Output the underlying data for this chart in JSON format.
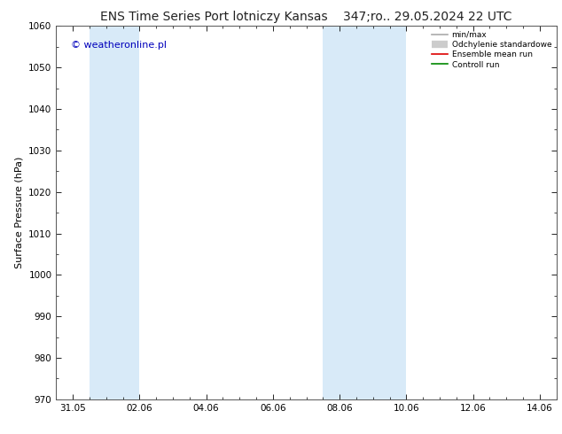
{
  "title_left": "ENS Time Series Port lotniczy Kansas",
  "title_right": "347;ro.. 29.05.2024 22 UTC",
  "ylabel": "Surface Pressure (hPa)",
  "ylim": [
    970,
    1060
  ],
  "yticks": [
    970,
    980,
    990,
    1000,
    1010,
    1020,
    1030,
    1040,
    1050,
    1060
  ],
  "xtick_labels": [
    "31.05",
    "02.06",
    "04.06",
    "06.06",
    "08.06",
    "10.06",
    "12.06",
    "14.06"
  ],
  "xlim": [
    0,
    15
  ],
  "xtick_positions": [
    0.5,
    2.5,
    4.5,
    6.5,
    8.5,
    10.5,
    12.5,
    14.5
  ],
  "background_color": "#ffffff",
  "plot_bg_color": "#ffffff",
  "shaded_bands": [
    {
      "x_start": 1.0,
      "x_end": 2.5,
      "color": "#d8eaf8"
    },
    {
      "x_start": 8.0,
      "x_end": 10.5,
      "color": "#d8eaf8"
    }
  ],
  "legend_entries": [
    {
      "label": "min/max",
      "color": "#aaaaaa",
      "lw": 1.2
    },
    {
      "label": "Odchylenie standardowe",
      "color": "#cccccc",
      "lw": 6
    },
    {
      "label": "Ensemble mean run",
      "color": "#dd0000",
      "lw": 1.2
    },
    {
      "label": "Controll run",
      "color": "#008800",
      "lw": 1.2
    }
  ],
  "watermark": "© weatheronline.pl",
  "watermark_color": "#0000bb",
  "watermark_fontsize": 8,
  "title_fontsize": 10,
  "axis_label_fontsize": 8,
  "tick_fontsize": 7.5
}
